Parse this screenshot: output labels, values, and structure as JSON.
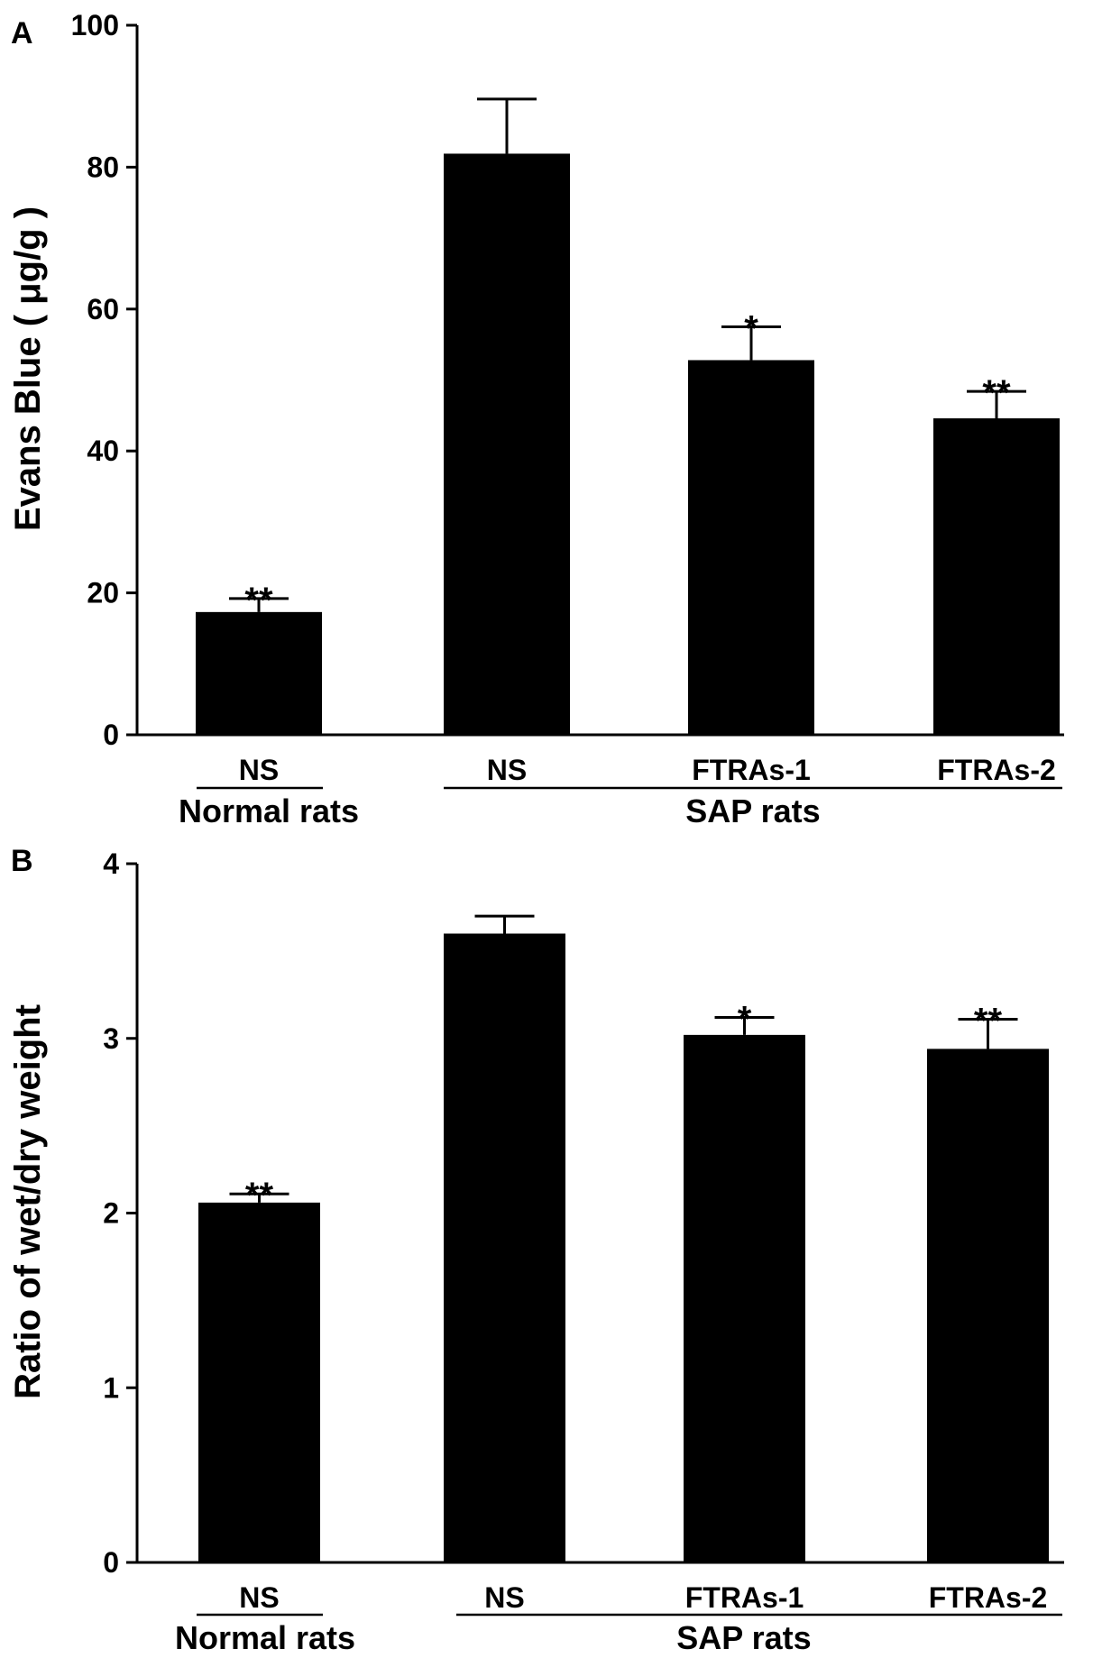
{
  "colors": {
    "bar": "#000000",
    "axis": "#000000",
    "background": "#ffffff"
  },
  "chart_data": [
    {
      "panel": "A",
      "type": "bar",
      "ylabel": "Evans Blue ( μg/g )",
      "ylim": [
        0,
        100
      ],
      "yticks": [
        0,
        20,
        40,
        60,
        80,
        100
      ],
      "categories": [
        "NS",
        "NS",
        "FTRAs-1",
        "FTRAs-2"
      ],
      "groups": [
        {
          "label": "Normal rats",
          "categories": [
            0
          ]
        },
        {
          "label": "SAP rats",
          "categories": [
            1,
            2,
            3
          ]
        }
      ],
      "values": [
        17.3,
        81.9,
        52.8,
        44.6
      ],
      "errors": [
        1.9,
        7.7,
        4.7,
        3.8
      ],
      "significance": [
        "**",
        "",
        "*",
        "**"
      ]
    },
    {
      "panel": "B",
      "type": "bar",
      "ylabel": "Ratio of wet/dry weight",
      "ylim": [
        0,
        4
      ],
      "yticks": [
        0,
        1,
        2,
        3,
        4
      ],
      "categories": [
        "NS",
        "NS",
        "FTRAs-1",
        "FTRAs-2"
      ],
      "groups": [
        {
          "label": "Normal rats",
          "categories": [
            0
          ]
        },
        {
          "label": "SAP rats",
          "categories": [
            1,
            2,
            3
          ]
        }
      ],
      "values": [
        2.06,
        3.6,
        3.02,
        2.94
      ],
      "errors": [
        0.05,
        0.1,
        0.1,
        0.17
      ],
      "significance": [
        "**",
        "",
        "*",
        "**"
      ]
    }
  ]
}
